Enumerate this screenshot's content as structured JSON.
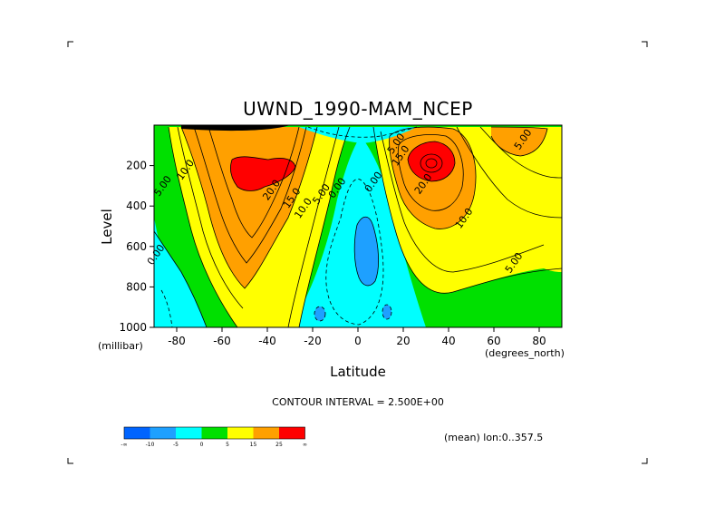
{
  "chart_data": {
    "type": "heatmap",
    "title": "UWND_1990-MAM_NCEP",
    "xlabel": "Latitude",
    "ylabel": "Level",
    "x_units": "(degrees_north)",
    "y_units": "(millibar)",
    "xlim": [
      -90,
      90
    ],
    "ylim": [
      1000,
      0
    ],
    "x_ticks": [
      "-80",
      "-60",
      "-40",
      "-20",
      "0",
      "20",
      "40",
      "60",
      "80"
    ],
    "y_ticks": [
      "200",
      "400",
      "600",
      "800",
      "1000"
    ],
    "contour_interval_text": "CONTOUR INTERVAL = 2.500E+00",
    "mean_text": "(mean) lon:0..357.5",
    "colorbar": {
      "colors": [
        "#0064ff",
        "#1ea0ff",
        "#00ffff",
        "#00e000",
        "#ffff00",
        "#ffa000",
        "#ff0000"
      ],
      "labels": [
        "-∞",
        "-10",
        "-5",
        "0",
        "5",
        "15",
        "25",
        "∞"
      ]
    },
    "contour_labels": [
      {
        "text": "10.0",
        "lat": -75,
        "lev": 230
      },
      {
        "text": "5.00",
        "lat": -85,
        "lev": 310
      },
      {
        "text": "0.00",
        "lat": -88,
        "lev": 650
      },
      {
        "text": "20.0",
        "lat": -37,
        "lev": 330
      },
      {
        "text": "15.0",
        "lat": -28,
        "lev": 370
      },
      {
        "text": "10.0",
        "lat": -23,
        "lev": 420
      },
      {
        "text": "5.00",
        "lat": -15,
        "lev": 350
      },
      {
        "text": "0.00",
        "lat": -8,
        "lev": 320
      },
      {
        "text": "0.00",
        "lat": 8,
        "lev": 290
      },
      {
        "text": "20.0",
        "lat": 30,
        "lev": 300
      },
      {
        "text": "10.0",
        "lat": 48,
        "lev": 470
      },
      {
        "text": "5.00",
        "lat": 70,
        "lev": 690
      },
      {
        "text": "5.00",
        "lat": 18,
        "lev": 100
      },
      {
        "text": "15.0",
        "lat": 20,
        "lev": 160
      },
      {
        "text": "5.00",
        "lat": 74,
        "lev": 80
      }
    ],
    "features": [
      {
        "name": "southern-hemisphere-jet",
        "lat": -50,
        "lev": 220,
        "max_value": 25
      },
      {
        "name": "northern-hemisphere-jet",
        "lat": 30,
        "lev": 200,
        "max_value": 30
      },
      {
        "name": "equatorial-easterlies",
        "lat": 2,
        "lev": 600,
        "min_value": -5
      }
    ]
  }
}
